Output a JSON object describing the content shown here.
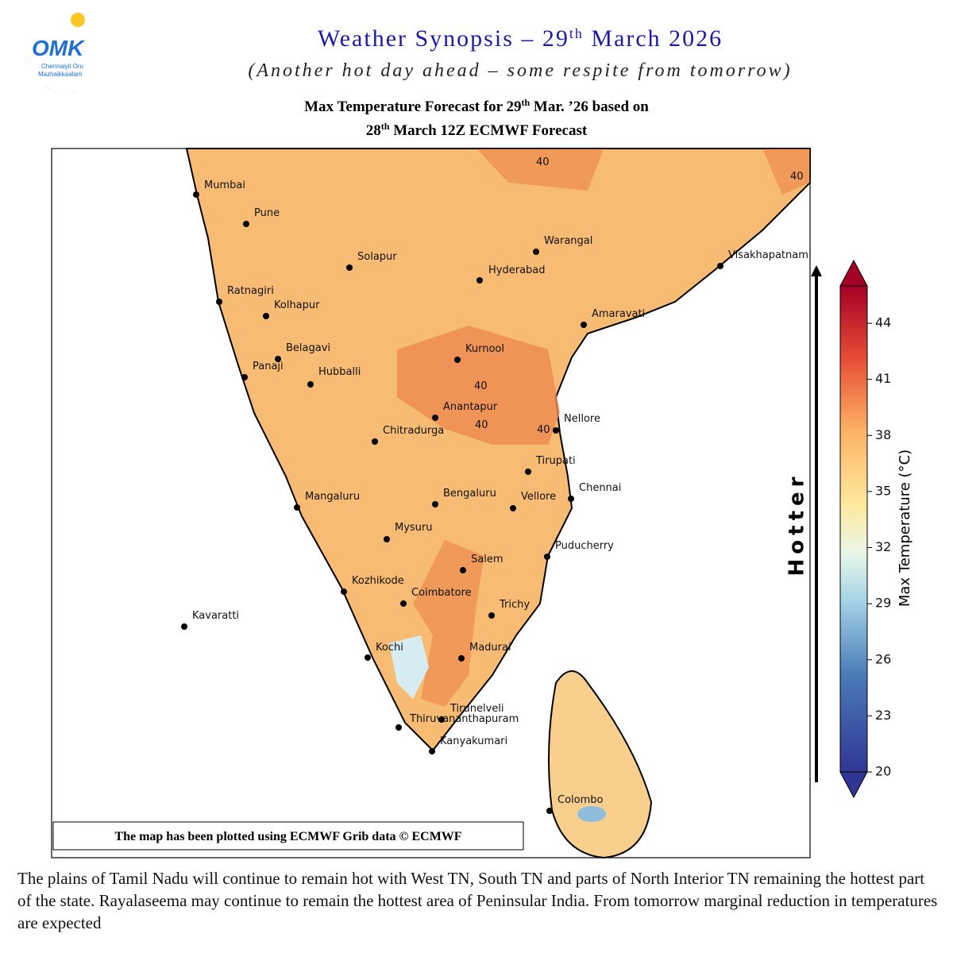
{
  "logo": {
    "mark": "OMK",
    "line1": "Chennaiyil Oru",
    "line2": "Mazhaikkaalam"
  },
  "header": {
    "title": [
      "Weather Synopsis – 29",
      "th",
      " March 2026"
    ],
    "subtitle": "(Another hot day ahead – some respite from tomorrow)"
  },
  "map": {
    "title_line1": [
      "Max Temperature Forecast for 29",
      "th",
      " Mar. ’26 based on"
    ],
    "title_line2": [
      "28",
      "th",
      " March 12Z ECMWF Forecast"
    ],
    "cities": [
      "Mumbai",
      "Pune",
      "Solapur",
      "Warangal",
      "Hyderabad",
      "Visakhapatnam",
      "Ratnagiri",
      "Kolhapur",
      "Amaravati",
      "Belagavi",
      "Panaji",
      "Hubballi",
      "Kurnool",
      "Anantapur",
      "Nellore",
      "Chitradurga",
      "Tirupati",
      "Chennai",
      "Mangaluru",
      "Bengaluru",
      "Vellore",
      "Mysuru",
      "Puducherry",
      "Salem",
      "Kozhikode",
      "Coimbatore",
      "Trichy",
      "Kavaratti",
      "Kochi",
      "Madurai",
      "Tirunelveli",
      "Thiruvananthapuram",
      "Kanyakumari",
      "Colombo"
    ],
    "contour_labels": [
      "40",
      "40",
      "40",
      "40",
      "40"
    ],
    "credit": "The map has been plotted using ECMWF Grib data © ECMWF"
  },
  "colorbar": {
    "label": "Max Temperature (°C)",
    "lim": [
      20,
      46
    ],
    "ticks": [
      20,
      23,
      26,
      29,
      32,
      35,
      38,
      41,
      44
    ],
    "arrow_label": "Hotter"
  },
  "caption": "The plains of Tamil Nadu will continue to remain hot with West TN, South TN and parts of North Interior TN remaining the hottest part of the state. Rayalaseema may continue to remain the hottest area of Peninsular India. From tomorrow marginal reduction in temperatures are expected"
}
